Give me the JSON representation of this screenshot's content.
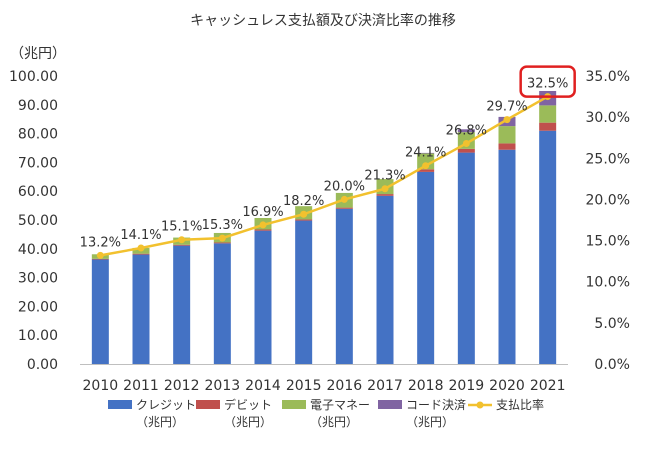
{
  "chart_data": {
    "type": "bar",
    "stacked": true,
    "title": "キャッシュレス支払額及び決済比率の推移",
    "ylabel": "（兆円）",
    "ylim": [
      0,
      100
    ],
    "y2lim": [
      0,
      35
    ],
    "y_ticks": [
      "0.00",
      "10.00",
      "20.00",
      "30.00",
      "40.00",
      "50.00",
      "60.00",
      "70.00",
      "80.00",
      "90.00",
      "100.00"
    ],
    "y2_ticks": [
      "0.0%",
      "5.0%",
      "10.0%",
      "15.0%",
      "20.0%",
      "25.0%",
      "30.0%",
      "35.0%"
    ],
    "categories": [
      "2010",
      "2011",
      "2012",
      "2013",
      "2014",
      "2015",
      "2016",
      "2017",
      "2018",
      "2019",
      "2020",
      "2021"
    ],
    "series": [
      {
        "name": "クレジット",
        "unit": "（兆円）",
        "color": "#4472C4",
        "values": [
          36.3,
          38.0,
          41.1,
          41.9,
          46.3,
          49.8,
          53.9,
          58.4,
          66.7,
          73.4,
          74.4,
          81.0
        ]
      },
      {
        "name": "デビット",
        "unit": "（兆円）",
        "color": "#C0504D",
        "values": [
          0.2,
          0.3,
          0.3,
          0.3,
          0.4,
          0.4,
          0.4,
          0.6,
          0.9,
          1.3,
          2.2,
          2.8
        ]
      },
      {
        "name": "電子マネー",
        "unit": "（兆円）",
        "color": "#9BBB59",
        "values": [
          1.6,
          2.0,
          2.5,
          3.3,
          4.0,
          4.6,
          5.1,
          5.2,
          5.5,
          5.8,
          6.0,
          6.0
        ]
      },
      {
        "name": "コード決済",
        "unit": "（兆円）",
        "color": "#8064A2",
        "values": [
          0,
          0,
          0,
          0,
          0,
          0,
          0,
          0,
          0.2,
          1.0,
          3.2,
          5.0
        ]
      }
    ],
    "line_series": {
      "name": "支払比率",
      "color": "#F2C12E",
      "axis": "right",
      "values": [
        13.2,
        14.1,
        15.1,
        15.3,
        16.9,
        18.2,
        20.0,
        21.3,
        24.1,
        26.8,
        29.7,
        32.5
      ],
      "labels": [
        "13.2%",
        "14.1%",
        "15.1%",
        "15.3%",
        "16.9%",
        "18.2%",
        "20.0%",
        "21.3%",
        "24.1%",
        "26.8%",
        "29.7%",
        "32.5%"
      ]
    },
    "highlight": {
      "index": 11,
      "color": "#E02020"
    },
    "legend_position": "bottom",
    "grid": false
  }
}
